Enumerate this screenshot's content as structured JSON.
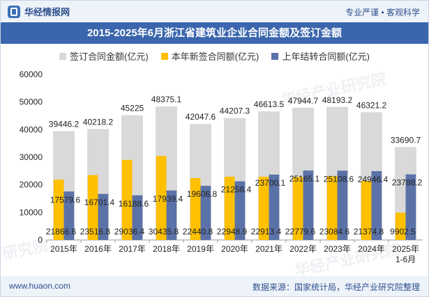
{
  "header": {
    "logo_text": "华经情报网",
    "tagline": "专业严谨 • 客观科学",
    "title": "2015-2025年6月浙江省建筑业企业合同金额及签订金额"
  },
  "footer": {
    "site": "www.huaon.com",
    "source": "数据来源：国家统计局，华经产业研究院整理"
  },
  "watermarks": [
    "华经产业研究院",
    "华经产业研究院",
    "研究院"
  ],
  "colors": {
    "signed": "#d9d9d9",
    "new": "#ffc000",
    "carry": "#5b72a8",
    "title_bg": "#3b66ad"
  },
  "chart_data": {
    "type": "bar",
    "categories": [
      "2015年",
      "2016年",
      "2017年",
      "2018年",
      "2019年",
      "2020年",
      "2021年",
      "2022年",
      "2023年",
      "2024年",
      "2025年\n1-6月"
    ],
    "series": [
      {
        "name": "签订合同金额(亿元)",
        "values": [
          39446.2,
          40218.2,
          45225,
          48375.1,
          42047.6,
          44207.3,
          46613.5,
          47944.7,
          48193.2,
          46321.2,
          33690.7
        ],
        "labels": [
          "39446.2",
          "40218.2",
          "45225",
          "48375.1",
          "42047.6",
          "44207.3",
          "46613.5",
          "47944.7",
          "48193.2",
          "46321.2",
          "33690.7"
        ]
      },
      {
        "name": "本年新签合同额(亿元)",
        "values": [
          21866.6,
          23516.8,
          29036.4,
          30435.8,
          22440.8,
          22948.9,
          22913.4,
          22779.6,
          23084.6,
          21374.8,
          9902.5
        ],
        "labels": [
          "21866.6",
          "23516.8",
          "29036.4",
          "30435.8",
          "22440.8",
          "22948.9",
          "22913.4",
          "22779.6",
          "23084.6",
          "21374.8",
          "9902.5"
        ]
      },
      {
        "name": "上年结转合同额(亿元)",
        "values": [
          17579.6,
          16701.4,
          16188.6,
          17939.4,
          19606.8,
          21258.4,
          23700.1,
          25165.1,
          25108.6,
          24946.4,
          23788.2
        ],
        "labels": [
          "17579.6",
          "16701.4",
          "16188.6",
          "17939.4",
          "19606.8",
          "21258.4",
          "23700.1",
          "25165.1",
          "25108.6",
          "24946.4",
          "23788.2"
        ]
      }
    ],
    "yticks": [
      "0",
      "10000",
      "20000",
      "30000",
      "40000",
      "50000",
      "60000"
    ],
    "ylim": [
      0,
      60000
    ],
    "grid": false,
    "legend": "top-center"
  }
}
